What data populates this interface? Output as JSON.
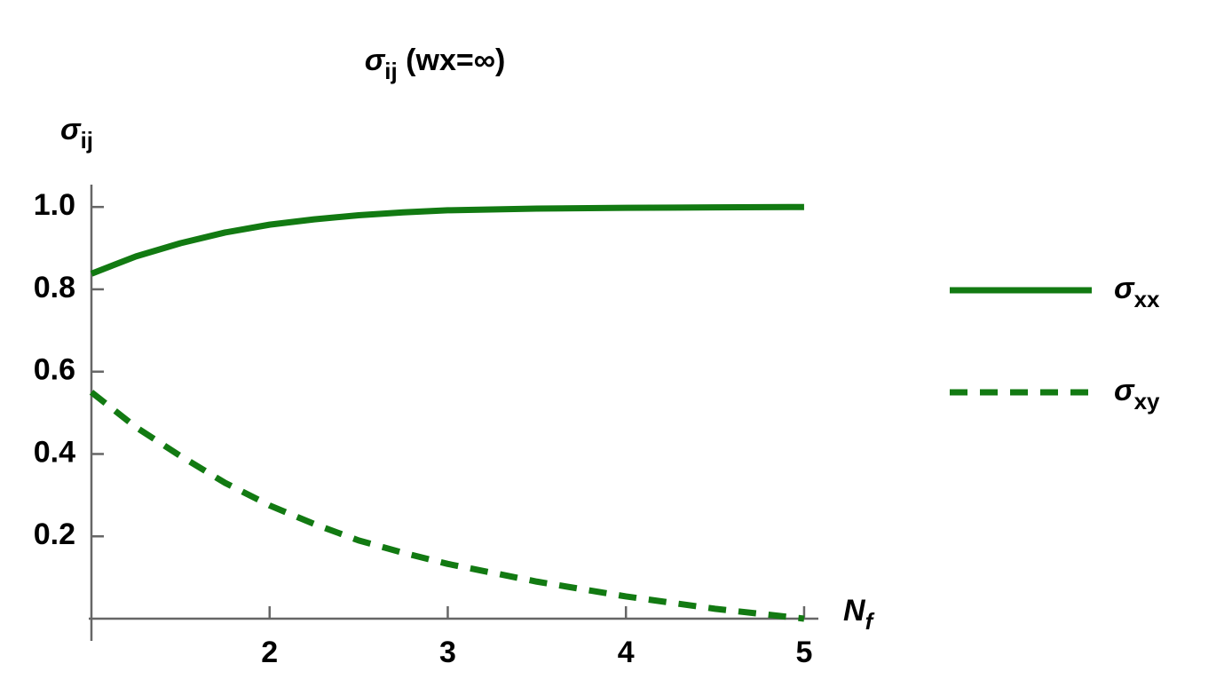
{
  "chart_data": {
    "type": "line",
    "title": "σij (wx=∞)",
    "y_label": "σij",
    "x_label": "Nf",
    "x": [
      1,
      1.25,
      1.5,
      1.75,
      2,
      2.25,
      2.5,
      2.75,
      3,
      3.5,
      4,
      4.5,
      5
    ],
    "series": [
      {
        "name": "σxx",
        "color": "#127a12",
        "dash": false,
        "values": [
          0.838,
          0.88,
          0.912,
          0.938,
          0.957,
          0.97,
          0.98,
          0.987,
          0.992,
          0.996,
          0.998,
          0.999,
          1.0
        ]
      },
      {
        "name": "σxy",
        "color": "#127a12",
        "dash": true,
        "values": [
          0.55,
          0.465,
          0.395,
          0.33,
          0.275,
          0.23,
          0.19,
          0.16,
          0.133,
          0.09,
          0.054,
          0.024,
          0
        ]
      }
    ],
    "xlim": [
      1,
      5.08
    ],
    "ylim": [
      0,
      1.05
    ],
    "xticks": [
      2,
      3,
      4,
      5
    ],
    "yticks": [
      0.2,
      0.4,
      0.6,
      0.8,
      {
        "value": 1,
        "label": "1.0"
      }
    ],
    "legend": "right"
  }
}
